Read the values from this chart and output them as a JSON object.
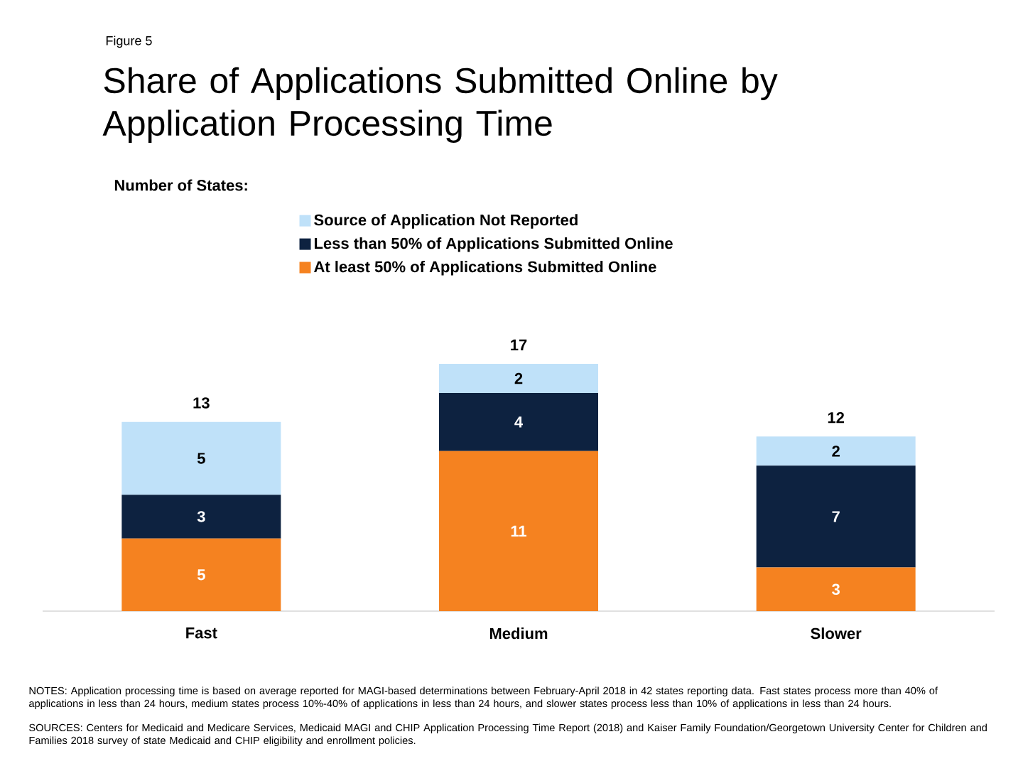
{
  "chart_data": {
    "type": "bar",
    "title": "Share of Applications Submitted Online by Application Processing Time",
    "legend_title": "Number of States:",
    "annotations": [
      "Figure 5",
      "NOTES: Application processing time is based on average reported for MAGI-based determinations between February-April 2018 in 42 states reporting data. Fast states process more than 40% of applications in less than 24 hours, medium states process 10%-40% of applications in less than 24 hours, and slower states process less than 10% of applications in less than 24 hours.",
      "SOURCES: Centers for Medicaid and Medicare Services, Medicaid MAGI and CHIP Application Processing Time Report (2018) and Kaiser Family Foundation/Georgetown University Center for Children and Families 2018 survey of state Medicaid and CHIP eligibility and enrollment policies."
    ],
    "categories": [
      "Fast",
      "Medium",
      "Slower"
    ],
    "series": [
      {
        "name": "At least 50% of Applications Submitted Online",
        "color": "#f58220",
        "values": [
          5,
          11,
          3
        ]
      },
      {
        "name": "Less than 50% of Applications Submitted Online",
        "color": "#0d2240",
        "values": [
          3,
          4,
          7
        ]
      },
      {
        "name": "Source of Application Not Reported",
        "color": "#bfe1f9",
        "values": [
          5,
          2,
          2
        ]
      }
    ],
    "stacked": true,
    "data_labels": true,
    "totals": [
      "13",
      "17",
      "12"
    ],
    "legend": "top"
  }
}
